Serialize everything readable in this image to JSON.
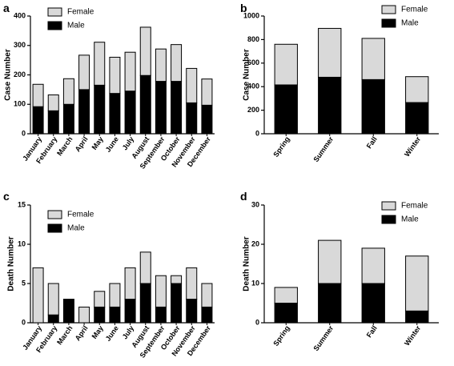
{
  "chart_data": [
    {
      "panel": "a",
      "type": "bar",
      "stacked": true,
      "ylabel": "Case Number",
      "ylim": [
        0,
        400
      ],
      "yticks": [
        0,
        100,
        200,
        300,
        400
      ],
      "legend_position": "top-left",
      "categories": [
        "January",
        "February",
        "March",
        "April",
        "May",
        "June",
        "July",
        "August",
        "September",
        "October",
        "November",
        "December"
      ],
      "series": [
        {
          "name": "Male",
          "color": "#000000",
          "values": [
            92,
            78,
            100,
            150,
            165,
            137,
            145,
            198,
            178,
            178,
            105,
            97
          ]
        },
        {
          "name": "Female",
          "color": "#d9d9d9",
          "values": [
            76,
            54,
            87,
            117,
            146,
            123,
            132,
            164,
            110,
            125,
            117,
            89
          ]
        }
      ]
    },
    {
      "panel": "b",
      "type": "bar",
      "stacked": true,
      "ylabel": "Case Number",
      "ylim": [
        0,
        1000
      ],
      "yticks": [
        0,
        200,
        400,
        600,
        800,
        1000
      ],
      "legend_position": "top-right",
      "categories": [
        "Spring",
        "Summer",
        "Fall",
        "Winter"
      ],
      "series": [
        {
          "name": "Male",
          "color": "#000000",
          "values": [
            415,
            480,
            460,
            265
          ]
        },
        {
          "name": "Female",
          "color": "#d9d9d9",
          "values": [
            345,
            415,
            350,
            220
          ]
        }
      ]
    },
    {
      "panel": "c",
      "type": "bar",
      "stacked": true,
      "ylabel": "Death Number",
      "ylim": [
        0,
        15
      ],
      "yticks": [
        0,
        5,
        10,
        15
      ],
      "legend_position": "top-left",
      "categories": [
        "January",
        "February",
        "March",
        "April",
        "May",
        "June",
        "July",
        "August",
        "September",
        "October",
        "November",
        "December"
      ],
      "series": [
        {
          "name": "Male",
          "color": "#000000",
          "values": [
            0,
            1,
            3,
            0,
            2,
            2,
            3,
            5,
            2,
            5,
            3,
            2
          ]
        },
        {
          "name": "Female",
          "color": "#d9d9d9",
          "values": [
            7,
            4,
            0,
            2,
            2,
            3,
            4,
            4,
            4,
            1,
            4,
            3
          ]
        }
      ]
    },
    {
      "panel": "d",
      "type": "bar",
      "stacked": true,
      "ylabel": "Death Number",
      "ylim": [
        0,
        30
      ],
      "yticks": [
        0,
        10,
        20,
        30
      ],
      "legend_position": "top-right",
      "categories": [
        "Spring",
        "Summer",
        "Fall",
        "Winter"
      ],
      "series": [
        {
          "name": "Male",
          "color": "#000000",
          "values": [
            5,
            10,
            10,
            3
          ]
        },
        {
          "name": "Female",
          "color": "#d9d9d9",
          "values": [
            4,
            11,
            9,
            14
          ]
        }
      ]
    }
  ]
}
